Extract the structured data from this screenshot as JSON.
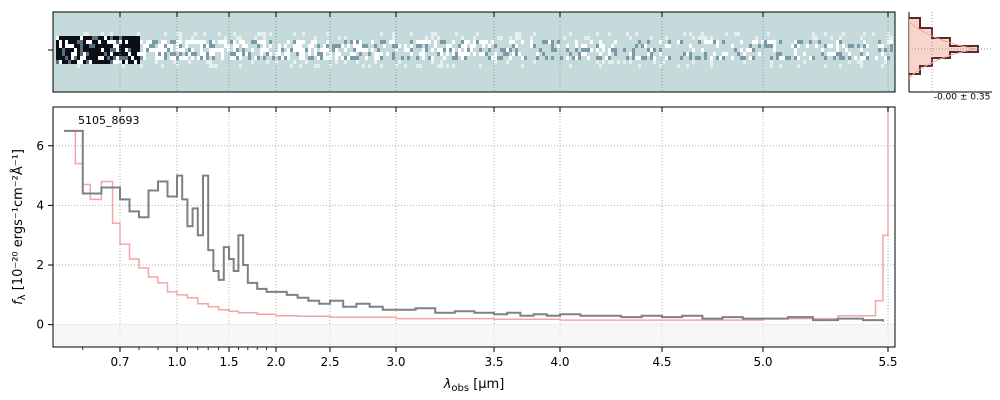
{
  "chart_data": {
    "type": "line",
    "annotation": "5105_8693",
    "xlabel_prefix": "λ",
    "xlabel_sub": "obs",
    "xlabel_suffix": " [μm]",
    "ylabel_base": "f",
    "ylabel_sub": "λ",
    "ylabel_units": " [10⁻²⁰ ergs⁻¹cm⁻²Å⁻¹]",
    "x_scale": "nonlinear (resolution-weighted) wavelength axis",
    "x_ticks": [
      0.7,
      1.0,
      1.5,
      2.0,
      2.5,
      3.0,
      3.5,
      4.0,
      4.5,
      5.0,
      5.5
    ],
    "x_tick_labels": [
      "0.7",
      "1.0",
      "1.5",
      "2.0",
      "2.5",
      "3.0",
      "3.5",
      "4.0",
      "4.5",
      "5.0",
      "5.5"
    ],
    "xlim": [
      0.52,
      5.52
    ],
    "y_ticks": [
      0,
      2,
      4,
      6
    ],
    "ylim": [
      -0.75,
      7.3
    ],
    "grid": true,
    "series": [
      {
        "role": "flux",
        "color": "#808080",
        "x": [
          0.55,
          0.6,
          0.65,
          0.7,
          0.75,
          0.8,
          0.85,
          0.9,
          0.95,
          1.0,
          1.05,
          1.1,
          1.15,
          1.2,
          1.25,
          1.3,
          1.35,
          1.4,
          1.45,
          1.5,
          1.55,
          1.6,
          1.65,
          1.7,
          1.8,
          1.9,
          2.0,
          2.1,
          2.2,
          2.3,
          2.4,
          2.5,
          2.6,
          2.7,
          2.8,
          2.9,
          3.0,
          3.1,
          3.2,
          3.3,
          3.4,
          3.5,
          3.6,
          3.7,
          3.8,
          3.9,
          4.0,
          4.1,
          4.2,
          4.3,
          4.4,
          4.5,
          4.6,
          4.7,
          4.8,
          4.9,
          5.0,
          5.1,
          5.2,
          5.3,
          5.4,
          5.48
        ],
        "y": [
          6.5,
          4.4,
          4.6,
          4.2,
          3.8,
          3.6,
          4.5,
          4.8,
          4.3,
          5.0,
          4.2,
          3.3,
          3.9,
          3.0,
          5.0,
          2.5,
          1.8,
          1.5,
          2.6,
          2.2,
          1.8,
          3.0,
          2.0,
          1.4,
          1.2,
          1.1,
          1.1,
          1.0,
          0.9,
          0.8,
          0.7,
          0.8,
          0.6,
          0.7,
          0.6,
          0.5,
          0.5,
          0.55,
          0.4,
          0.45,
          0.4,
          0.35,
          0.4,
          0.3,
          0.35,
          0.3,
          0.35,
          0.3,
          0.3,
          0.25,
          0.3,
          0.25,
          0.3,
          0.2,
          0.25,
          0.2,
          0.2,
          0.25,
          0.15,
          0.2,
          0.15,
          0.1
        ]
      },
      {
        "role": "error",
        "color": "#f4a6a6",
        "x": [
          0.55,
          0.58,
          0.6,
          0.62,
          0.65,
          0.68,
          0.7,
          0.75,
          0.8,
          0.85,
          0.9,
          0.95,
          1.0,
          1.1,
          1.2,
          1.3,
          1.4,
          1.5,
          1.6,
          1.8,
          2.0,
          2.2,
          2.5,
          3.0,
          3.5,
          4.0,
          4.5,
          5.0,
          5.3,
          5.45,
          5.48,
          5.5
        ],
        "y": [
          6.5,
          5.4,
          4.7,
          4.2,
          4.8,
          3.4,
          2.7,
          2.2,
          1.9,
          1.6,
          1.4,
          1.1,
          1.0,
          0.9,
          0.7,
          0.6,
          0.5,
          0.45,
          0.4,
          0.35,
          0.3,
          0.28,
          0.25,
          0.2,
          0.18,
          0.15,
          0.15,
          0.2,
          0.3,
          0.8,
          3.0,
          7.3
        ]
      }
    ],
    "image_panel": {
      "description_colors": [
        "#c5dada",
        "#ffffff",
        "#0a0f18",
        "#7a9aa8"
      ],
      "colormap": "bone_r-like"
    },
    "side_histogram": {
      "label": "-0.00 ± 0.35",
      "edge_color": "#5b2a26",
      "fill_color": "#f6c9bd"
    }
  }
}
